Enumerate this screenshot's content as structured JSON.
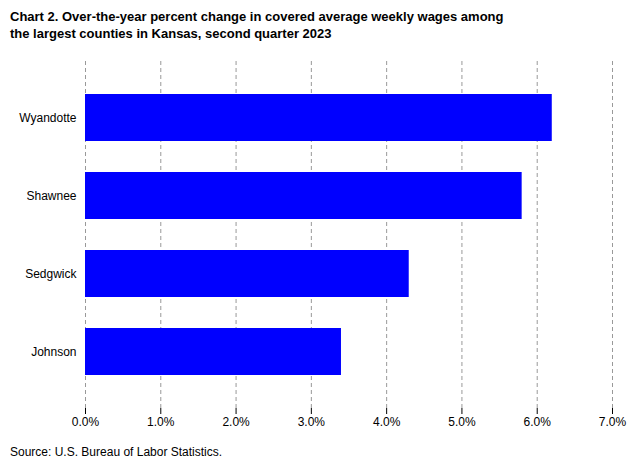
{
  "chart_data": {
    "type": "bar",
    "orientation": "horizontal",
    "title": "Chart 2. Over-the-year percent change in covered average weekly wages among\nthe largest counties in Kansas, second quarter 2023",
    "caption": "Source: U.S. Bureau of Labor Statistics.",
    "categories": [
      "Johnson",
      "Sedgwick",
      "Shawnee",
      "Wyandotte"
    ],
    "values": [
      0.034,
      0.043,
      0.058,
      0.062
    ],
    "color": "#0000ff",
    "xlim": [
      0,
      0.07
    ],
    "xticks": [
      {
        "value": 0.0,
        "label": "0.0%"
      },
      {
        "value": 0.01,
        "label": "1.0%"
      },
      {
        "value": 0.02,
        "label": "2.0%"
      },
      {
        "value": 0.03,
        "label": "3.0%"
      },
      {
        "value": 0.04,
        "label": "4.0%"
      },
      {
        "value": 0.05,
        "label": "5.0%"
      },
      {
        "value": 0.06,
        "label": "6.0%"
      },
      {
        "value": 0.07,
        "label": "7.0%"
      }
    ],
    "grid": true
  }
}
